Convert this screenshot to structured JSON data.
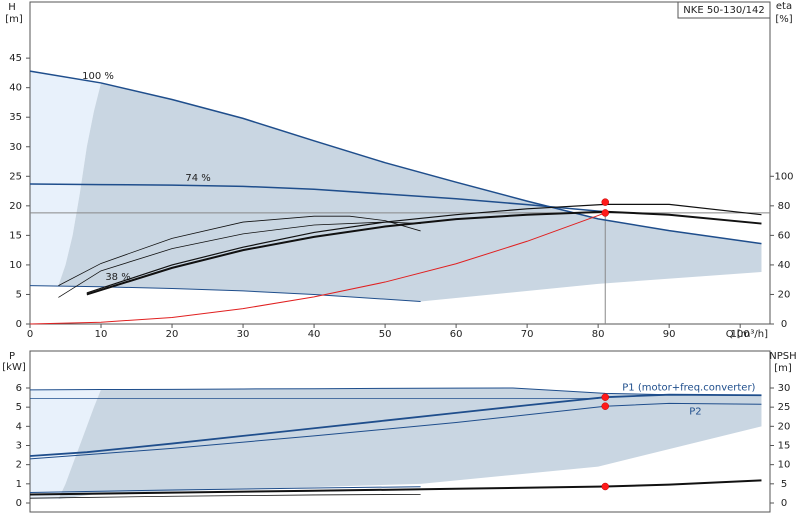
{
  "chart_data": [
    {
      "type": "line",
      "title": "NKE 50-130/142",
      "xlabel": "Q [m³/h]",
      "ylabel": "H",
      "yunit": "[m]",
      "y2label": "eta",
      "y2unit": "[%]",
      "xlim": [
        0,
        104.2
      ],
      "ylim": [
        0,
        54.5
      ],
      "y2lim": [
        0,
        218
      ],
      "xticks": [
        0,
        10,
        20,
        30,
        40,
        50,
        60,
        70,
        80,
        90,
        100
      ],
      "yticks": [
        0,
        5,
        10,
        15,
        20,
        25,
        30,
        35,
        40,
        45
      ],
      "y2ticks": [
        0,
        20,
        40,
        60,
        80,
        100
      ],
      "areas": [
        {
          "color": "#e8f1fb",
          "x": [
            0,
            10,
            9,
            8,
            7,
            6,
            5,
            4,
            0
          ],
          "values": [
            42.8,
            40.8,
            36,
            30,
            22,
            15,
            10,
            6.5,
            6.5
          ]
        },
        {
          "color": "#c9d6e2",
          "x": [
            10,
            20,
            30,
            40,
            50,
            60,
            70,
            80,
            90,
            103,
            103,
            80,
            55,
            50,
            40,
            30,
            20,
            10,
            4,
            5,
            6,
            7,
            8,
            9
          ],
          "values": [
            40.8,
            38,
            34.8,
            31,
            27.3,
            24,
            20.8,
            17.8,
            15.8,
            13.6,
            8.8,
            6.8,
            3.8,
            4.2,
            5,
            5.6,
            6,
            6.3,
            6.5,
            10,
            15,
            22,
            30,
            36
          ]
        }
      ],
      "series": [
        {
          "name": "100 %",
          "color": "#1f4e8c",
          "width": 1.5,
          "x": [
            0,
            10,
            20,
            30,
            40,
            50,
            60,
            70,
            80,
            90,
            103
          ],
          "values": [
            42.8,
            40.8,
            38,
            34.8,
            31,
            27.3,
            24,
            20.8,
            17.8,
            15.8,
            13.6
          ]
        },
        {
          "name": "74 %",
          "color": "#1f4e8c",
          "width": 1.5,
          "x": [
            0,
            10,
            20,
            30,
            40,
            50,
            60,
            70,
            81
          ],
          "values": [
            23.7,
            23.6,
            23.5,
            23.3,
            22.8,
            22,
            21.2,
            20.2,
            19
          ]
        },
        {
          "name": "38 %",
          "color": "#1f4e8c",
          "width": 1,
          "x": [
            0,
            10,
            20,
            30,
            40,
            50,
            55
          ],
          "values": [
            6.5,
            6.3,
            6,
            5.6,
            5,
            4.2,
            3.8
          ]
        },
        {
          "color": "#e02020",
          "width": 1,
          "x": [
            0,
            10,
            20,
            30,
            40,
            50,
            60,
            70,
            81
          ],
          "values": [
            0,
            0.3,
            1.1,
            2.6,
            4.6,
            7.1,
            10.2,
            14,
            18.8
          ]
        },
        {
          "color": "#111",
          "width": 0.8,
          "axis": "y2",
          "x": [
            4,
            10,
            20,
            30,
            40,
            45,
            50,
            55
          ],
          "values": [
            26,
            41,
            58,
            69,
            73,
            73,
            70,
            63
          ]
        },
        {
          "color": "#111",
          "width": 0.8,
          "axis": "y2",
          "x": [
            4,
            10,
            20,
            30,
            40,
            50,
            55
          ],
          "values": [
            18,
            36,
            51,
            61,
            67,
            69,
            68
          ]
        },
        {
          "color": "#111",
          "width": 2,
          "axis": "y2",
          "x": [
            8,
            20,
            30,
            40,
            50,
            60,
            70,
            81,
            90,
            103
          ],
          "values": [
            20,
            38,
            50,
            59,
            66,
            71,
            74,
            76,
            74,
            68
          ]
        },
        {
          "color": "#111",
          "width": 1.2,
          "axis": "y2",
          "x": [
            8,
            20,
            30,
            40,
            50,
            60,
            70,
            81,
            90,
            103
          ],
          "values": [
            21,
            40,
            52,
            62,
            69,
            74,
            78,
            81,
            81,
            74
          ]
        }
      ],
      "points": [
        {
          "x": 81,
          "y": 18.8
        },
        {
          "x": 81,
          "y": 82.5,
          "axis": "y2"
        }
      ]
    },
    {
      "type": "line",
      "ylabel": "P",
      "yunit": "[kW]",
      "y2label": "NPSH",
      "y2unit": "[m]",
      "xlim": [
        0,
        104.2
      ],
      "ylim": [
        -0.47,
        7.93
      ],
      "y2lim": [
        -2.35,
        39.65
      ],
      "yticks": [
        0,
        1,
        2,
        3,
        4,
        5,
        6
      ],
      "y2ticks": [
        0,
        5,
        10,
        15,
        20,
        25,
        30
      ],
      "areas": [
        {
          "color": "#e8f1fb",
          "x": [
            0,
            10,
            9,
            8,
            7,
            6,
            5,
            4,
            0
          ],
          "values": [
            5.9,
            5.92,
            5,
            4,
            3,
            2,
            1,
            0.2,
            0.2
          ]
        },
        {
          "color": "#c9d6e2",
          "x": [
            10,
            20,
            30,
            40,
            50,
            60,
            68,
            75,
            81,
            90,
            103,
            103,
            80,
            55,
            10,
            4,
            5,
            6,
            7,
            8,
            9
          ],
          "values": [
            5.92,
            5.93,
            5.95,
            5.96,
            5.98,
            5.99,
            6,
            5.85,
            5.72,
            5.65,
            5.62,
            4,
            1.9,
            1,
            0.5,
            0.2,
            1,
            2,
            3,
            4,
            5
          ]
        }
      ],
      "series": [
        {
          "name": "P1 (motor+freq.converter)",
          "color": "#1f4e8c",
          "width": 1.8,
          "x": [
            0,
            8,
            20,
            30,
            40,
            50,
            60,
            70,
            81,
            90,
            103
          ],
          "values": [
            2.45,
            2.65,
            3.1,
            3.5,
            3.9,
            4.3,
            4.7,
            5.1,
            5.52,
            5.65,
            5.62
          ]
        },
        {
          "name": "P2",
          "color": "#1f4e8c",
          "width": 1,
          "x": [
            0,
            20,
            40,
            60,
            81,
            90,
            103
          ],
          "values": [
            2.3,
            2.85,
            3.5,
            4.2,
            5.05,
            5.2,
            5.15
          ]
        },
        {
          "color": "#1f4e8c",
          "width": 1,
          "x": [
            0,
            10,
            20,
            30,
            40,
            50,
            60,
            68,
            75,
            81,
            90,
            103
          ],
          "values": [
            5.9,
            5.92,
            5.93,
            5.95,
            5.96,
            5.98,
            5.99,
            6,
            5.85,
            5.72,
            5.65,
            5.62
          ]
        },
        {
          "color": "#1f4e8c",
          "width": 0.8,
          "x": [
            0,
            20,
            40,
            60,
            80
          ],
          "values": [
            5.45,
            5.45,
            5.45,
            5.45,
            5.45
          ]
        },
        {
          "color": "#1f4e8c",
          "width": 1,
          "x": [
            0,
            20,
            40,
            55
          ],
          "values": [
            0.55,
            0.68,
            0.78,
            0.85
          ]
        },
        {
          "color": "#1f4e8c",
          "width": 0.8,
          "x": [
            0,
            20,
            40,
            55
          ],
          "values": [
            0.45,
            0.55,
            0.62,
            0.7
          ]
        },
        {
          "color": "#111",
          "width": 0.8,
          "x": [
            0,
            20,
            40,
            55
          ],
          "values": [
            0.25,
            0.35,
            0.42,
            0.45
          ]
        },
        {
          "color": "#111",
          "width": 2,
          "axis": "y2",
          "x": [
            0,
            20,
            40,
            60,
            81,
            90,
            103
          ],
          "values": [
            2.2,
            2.7,
            3.2,
            3.7,
            4.3,
            4.8,
            5.9
          ]
        }
      ],
      "points": [
        {
          "x": 81,
          "y": 5.52
        },
        {
          "x": 81,
          "y": 5.05
        },
        {
          "x": 81,
          "y": 4.3,
          "axis": "y2"
        }
      ]
    }
  ]
}
